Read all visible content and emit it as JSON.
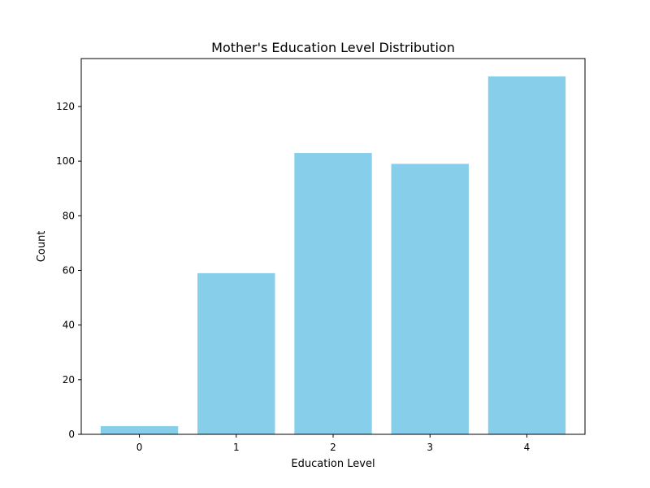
{
  "chart_data": {
    "type": "bar",
    "title": "Mother's Education Level Distribution",
    "xlabel": "Education Level",
    "ylabel": "Count",
    "categories": [
      "0",
      "1",
      "2",
      "3",
      "4"
    ],
    "values": [
      3,
      59,
      103,
      99,
      131
    ],
    "ylim": [
      0,
      137.55
    ],
    "yticks": [
      0,
      20,
      40,
      60,
      80,
      100,
      120
    ],
    "grid": false,
    "bar_color": "#87ceeb"
  }
}
